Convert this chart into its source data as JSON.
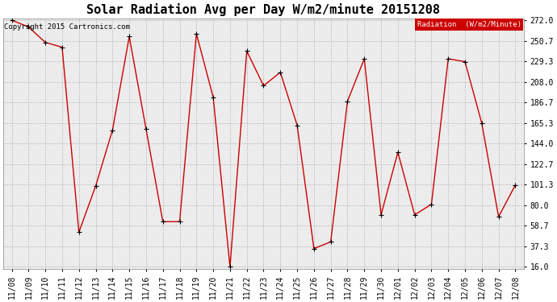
{
  "title": "Solar Radiation Avg per Day W/m2/minute 20151208",
  "copyright": "Copyright 2015 Cartronics.com",
  "legend_label": "Radiation  (W/m2/Minute)",
  "dates": [
    "11/08",
    "11/09",
    "11/10",
    "11/11",
    "11/12",
    "11/13",
    "11/14",
    "11/15",
    "11/16",
    "11/17",
    "11/18",
    "11/19",
    "11/20",
    "11/21",
    "11/22",
    "11/23",
    "11/24",
    "11/25",
    "11/26",
    "11/27",
    "11/28",
    "11/29",
    "11/30",
    "12/01",
    "12/02",
    "12/03",
    "12/04",
    "12/05",
    "12/06",
    "12/07",
    "12/08"
  ],
  "values": [
    272.0,
    265.0,
    249.0,
    244.0,
    52.0,
    100.0,
    158.0,
    255.0,
    159.0,
    63.0,
    63.0,
    258.0,
    192.0,
    16.0,
    240.0,
    204.0,
    218.0,
    163.0,
    35.0,
    42.0,
    188.0,
    232.0,
    70.0,
    135.0,
    70.0,
    81.0,
    232.0,
    229.0,
    165.0,
    68.0,
    101.0
  ],
  "line_color": "#cc0000",
  "marker_color": "#000000",
  "bg_color": "#ffffff",
  "plot_bg_color": "#ececec",
  "grid_color": "#bbbbbb",
  "ylim_min": 16.0,
  "ylim_max": 272.0,
  "yticks": [
    16.0,
    37.3,
    58.7,
    80.0,
    101.3,
    122.7,
    144.0,
    165.3,
    186.7,
    208.0,
    229.3,
    250.7,
    272.0
  ],
  "title_fontsize": 11,
  "tick_fontsize": 7,
  "legend_bg": "#cc0000",
  "legend_text_color": "#ffffff",
  "arrow_color": "#000000"
}
